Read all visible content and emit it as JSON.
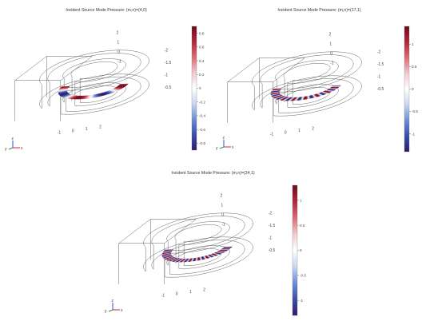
{
  "colors": {
    "colormap": [
      "#2f1a6e",
      "#3a4fa8",
      "#6c8fd4",
      "#c9d6ee",
      "#ffffff",
      "#f0c9cd",
      "#d96c74",
      "#b0283a",
      "#6d0a1e"
    ],
    "wireframe": "#555555",
    "axis_x": "#e0203a",
    "axis_y": "#2a9a3a",
    "axis_z": "#2b4fd8"
  },
  "chart_data": [
    {
      "type": "3d-surface",
      "title": "Incident Source Mode Pressure: (m,n)=(4,0)",
      "mode": {
        "m": 4,
        "n": 0
      },
      "colorbar": {
        "ticks": [
          "0.8",
          "0.6",
          "0.4",
          "0.2",
          "0",
          "-0.2",
          "-0.4",
          "-0.6",
          "-0.8"
        ],
        "range": [
          -0.9,
          0.9
        ]
      },
      "axes": {
        "y_ticks": [
          "2",
          "1",
          "0",
          "-1"
        ],
        "z_ticks": [
          "-2",
          "-1.5",
          "-1",
          "-0.5"
        ],
        "x_ticks": [
          "2",
          "1",
          "0",
          "-1"
        ],
        "triad": {
          "y": "y",
          "x": "x",
          "z": "z"
        }
      }
    },
    {
      "type": "3d-surface",
      "title": "Incident Source Mode Pressure: (m,n)=(17,1)",
      "mode": {
        "m": 17,
        "n": 1
      },
      "colorbar": {
        "ticks": [
          "1",
          "0.5",
          "0",
          "-0.5",
          "-1"
        ],
        "range": [
          -1.4,
          1.4
        ]
      },
      "axes": {
        "y_ticks": [
          "2",
          "1",
          "0",
          "-1"
        ],
        "z_ticks": [
          "-2",
          "-1.5",
          "-1",
          "-0.5"
        ],
        "x_ticks": [
          "2",
          "1",
          "0",
          "-1"
        ],
        "triad": {
          "y": "y",
          "x": "x",
          "z": "z"
        }
      }
    },
    {
      "type": "3d-surface",
      "title": "Incident Source Mode Pressure: (m,n)=(24,1)",
      "mode": {
        "m": 24,
        "n": 1
      },
      "colorbar": {
        "ticks": [
          "1",
          "0.5",
          "0",
          "-0.5",
          "-1"
        ],
        "range": [
          -1.3,
          1.3
        ]
      },
      "axes": {
        "y_ticks": [
          "2",
          "1",
          "0",
          "-1"
        ],
        "z_ticks": [
          "-2",
          "-1.5",
          "-1",
          "-0.5"
        ],
        "x_ticks": [
          "2",
          "1",
          "0",
          "-1"
        ],
        "triad": {
          "y": "y",
          "x": "x",
          "z": "z"
        }
      }
    }
  ]
}
